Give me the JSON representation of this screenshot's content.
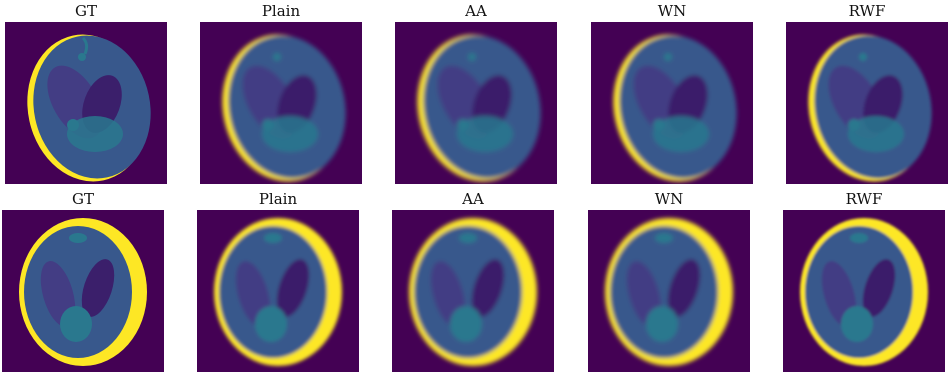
{
  "colors": {
    "background": "#440154",
    "purple_dark": "#3b1f6b",
    "purple_mid": "#433d84",
    "blue_mid": "#38588c",
    "teal": "#2a788e",
    "yellow": "#fde725"
  },
  "rows": [
    {
      "titles": [
        "GT",
        "Plain",
        "AA",
        "WN",
        "RWF"
      ],
      "variant": "phantom-a"
    },
    {
      "titles": [
        "GT",
        "Plain",
        "AA",
        "WN",
        "RWF"
      ],
      "variant": "phantom-b"
    }
  ]
}
